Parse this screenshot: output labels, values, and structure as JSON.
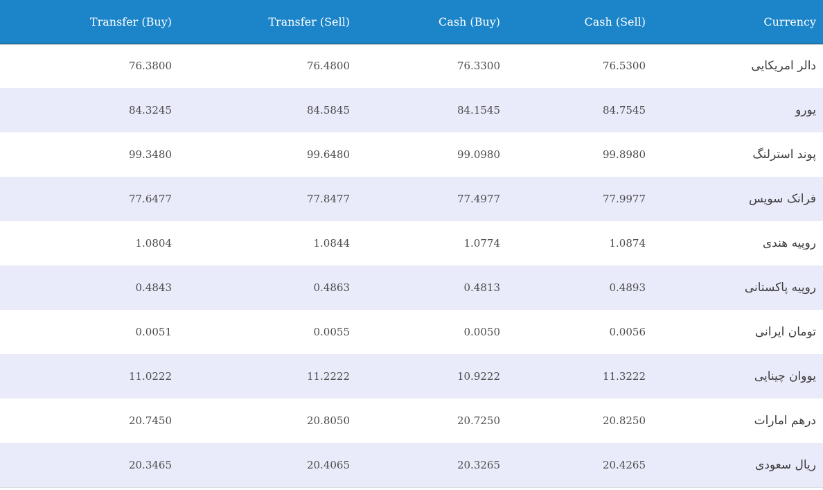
{
  "table": {
    "headers": {
      "transfer_buy": "Transfer (Buy)",
      "transfer_sell": "Transfer (Sell)",
      "cash_buy": "Cash (Buy)",
      "cash_sell": "Cash (Sell)",
      "currency": "Currency"
    },
    "rows": [
      {
        "transfer_buy": "76.3800",
        "transfer_sell": "76.4800",
        "cash_buy": "76.3300",
        "cash_sell": "76.5300",
        "currency": "دالر امریکایی"
      },
      {
        "transfer_buy": "84.3245",
        "transfer_sell": "84.5845",
        "cash_buy": "84.1545",
        "cash_sell": "84.7545",
        "currency": "یورو"
      },
      {
        "transfer_buy": "99.3480",
        "transfer_sell": "99.6480",
        "cash_buy": "99.0980",
        "cash_sell": "99.8980",
        "currency": "پوند استرلنگ"
      },
      {
        "transfer_buy": "77.6477",
        "transfer_sell": "77.8477",
        "cash_buy": "77.4977",
        "cash_sell": "77.9977",
        "currency": "فرانک سویس"
      },
      {
        "transfer_buy": "1.0804",
        "transfer_sell": "1.0844",
        "cash_buy": "1.0774",
        "cash_sell": "1.0874",
        "currency": "روپیه هندی"
      },
      {
        "transfer_buy": "0.4843",
        "transfer_sell": "0.4863",
        "cash_buy": "0.4813",
        "cash_sell": "0.4893",
        "currency": "روپیه پاکستانی"
      },
      {
        "transfer_buy": "0.0051",
        "transfer_sell": "0.0055",
        "cash_buy": "0.0050",
        "cash_sell": "0.0056",
        "currency": "تومان ایرانی"
      },
      {
        "transfer_buy": "11.0222",
        "transfer_sell": "11.2222",
        "cash_buy": "10.9222",
        "cash_sell": "11.3222",
        "currency": "یووان چینایی"
      },
      {
        "transfer_buy": "20.7450",
        "transfer_sell": "20.8050",
        "cash_buy": "20.7250",
        "cash_sell": "20.8250",
        "currency": "درهم امارات"
      },
      {
        "transfer_buy": "20.3465",
        "transfer_sell": "20.4065",
        "cash_buy": "20.3265",
        "cash_sell": "20.4265",
        "currency": "ریال سعودی"
      }
    ]
  },
  "colors": {
    "header_bg": "#1c85c9",
    "row_alt_bg": "#e9ebfa",
    "row_bg": "#ffffff"
  }
}
